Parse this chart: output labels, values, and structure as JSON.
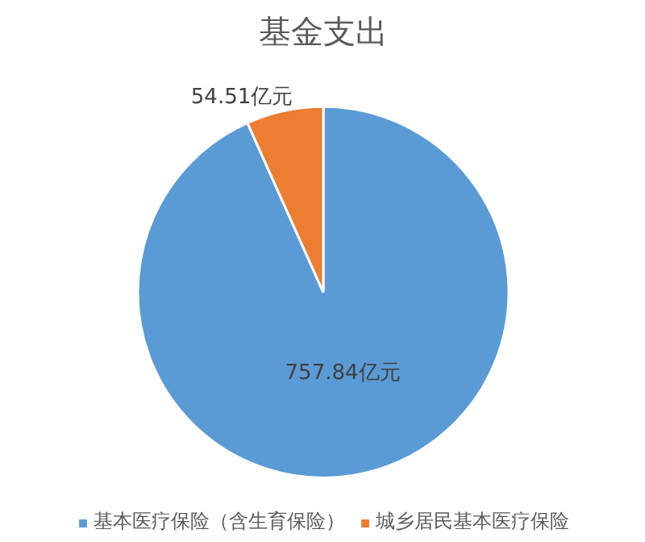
{
  "chart_data": {
    "type": "pie",
    "title": "基金支出",
    "categories": [
      "基本医疗保险（含生育保险）",
      "城乡居民基本医疗保险"
    ],
    "values": [
      757.84,
      54.51
    ],
    "colors": [
      "#5b9bd5",
      "#ed7d31"
    ],
    "value_labels": [
      "757.84亿元",
      "54.51亿元"
    ],
    "legend": "bottom"
  }
}
